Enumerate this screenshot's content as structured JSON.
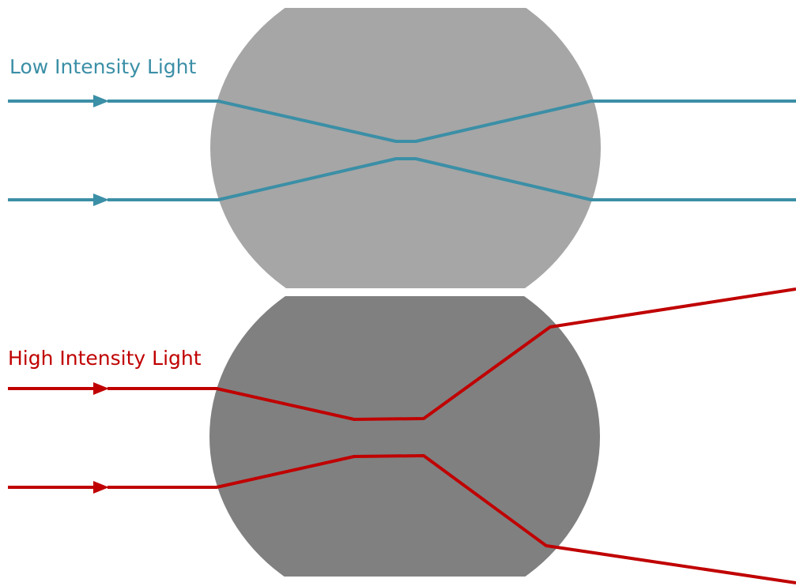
{
  "labels": {
    "low": "Low Intensity Light",
    "high": "High Intensity Light"
  },
  "colors": {
    "low_light": "#3b8fa6",
    "high_light": "#c00000",
    "lens_top": "#a6a6a6",
    "lens_bottom": "#808080",
    "background": "#ffffff"
  }
}
